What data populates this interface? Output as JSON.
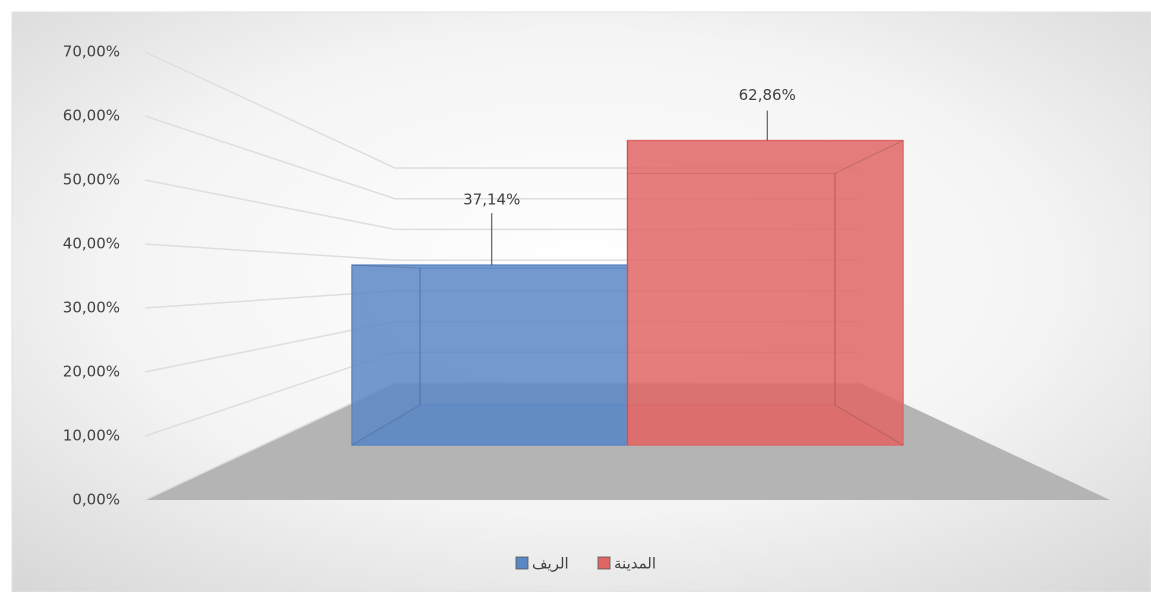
{
  "chart_data": {
    "type": "bar",
    "categories": [
      null
    ],
    "series": [
      {
        "name": "الريف",
        "color": "#5b87c5",
        "values": [
          37.14
        ],
        "value_labels": [
          "37,14%"
        ]
      },
      {
        "name": "المدينة",
        "color": "#e06666",
        "values": [
          62.86
        ],
        "value_labels": [
          "62,86%"
        ]
      }
    ],
    "ylim": [
      0,
      70
    ],
    "yticks": [
      {
        "value": 0,
        "label": "0,00%"
      },
      {
        "value": 10,
        "label": "10,00%"
      },
      {
        "value": 20,
        "label": "20,00%"
      },
      {
        "value": 30,
        "label": "30,00%"
      },
      {
        "value": 40,
        "label": "40,00%"
      },
      {
        "value": 50,
        "label": "50,00%"
      },
      {
        "value": 60,
        "label": "60,00%"
      },
      {
        "value": 70,
        "label": "70,00%"
      }
    ],
    "grid": true,
    "legend": "bottom"
  }
}
